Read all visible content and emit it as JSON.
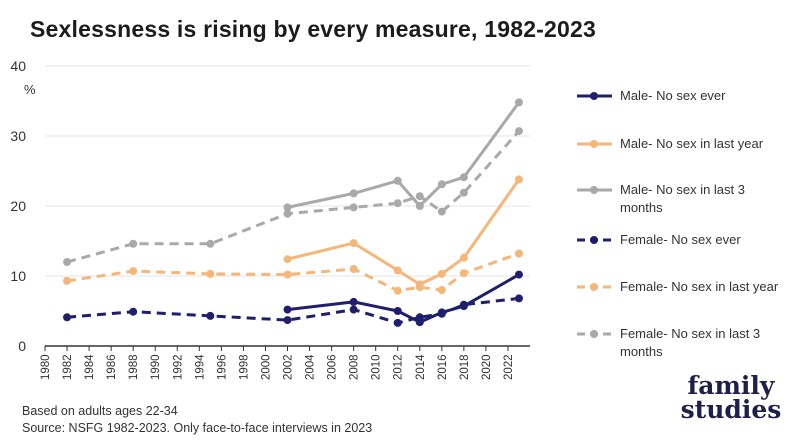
{
  "title": "Sexlessness is rising by every measure, 1982-2023",
  "footnotes": {
    "line1": "Based on adults ages 22-34",
    "line2": "Source: NSFG 1982-2023. Only face-to-face interviews in 2023"
  },
  "logo": {
    "line1": "family",
    "line2": "studies"
  },
  "colors": {
    "navy": "#1f1f6e",
    "orange": "#f5b67a",
    "gray": "#a9a9a9",
    "axis": "#333333",
    "grid": "#e6e6e6"
  },
  "chart_data": {
    "type": "line",
    "title": "Sexlessness is rising by every measure, 1982-2023",
    "ylabel": "%",
    "xlim": [
      1980,
      2024
    ],
    "ylim": [
      0,
      40
    ],
    "yticks": [
      0,
      10,
      20,
      30,
      40
    ],
    "xticks": [
      1980,
      1982,
      1984,
      1986,
      1988,
      1990,
      1992,
      1994,
      1996,
      1998,
      2000,
      2002,
      2004,
      2006,
      2008,
      2010,
      2012,
      2014,
      2016,
      2018,
      2020,
      2022
    ],
    "grid": true,
    "legend_position": "right",
    "series": [
      {
        "name": "Male- No sex ever",
        "legend_line1": "Male-  No sex ever",
        "legend_line2": "",
        "color": "#1f1f6e",
        "dash": false,
        "x": [
          2002,
          2008,
          2012,
          2014,
          2016,
          2018,
          2023
        ],
        "y": [
          5.2,
          6.3,
          5.0,
          3.4,
          4.8,
          5.7,
          10.2
        ]
      },
      {
        "name": "Male- No sex in last year",
        "legend_line1": "Male-  No sex in last year",
        "legend_line2": "",
        "color": "#f5b67a",
        "dash": false,
        "x": [
          2002,
          2008,
          2012,
          2014,
          2016,
          2018,
          2023
        ],
        "y": [
          12.4,
          14.7,
          10.8,
          8.8,
          10.3,
          12.6,
          23.8
        ]
      },
      {
        "name": "Male- No sex in last 3 months",
        "legend_line1": "Male-  No sex in last 3",
        "legend_line2": "months",
        "color": "#a9a9a9",
        "dash": false,
        "x": [
          2002,
          2008,
          2012,
          2014,
          2016,
          2018,
          2023
        ],
        "y": [
          19.8,
          21.8,
          23.6,
          20.0,
          23.1,
          24.1,
          34.8
        ]
      },
      {
        "name": "Female- No sex ever",
        "legend_line1": "Female-  No sex ever",
        "legend_line2": "",
        "color": "#1f1f6e",
        "dash": true,
        "x": [
          1982,
          1988,
          1995,
          2002,
          2008,
          2012,
          2014,
          2016,
          2018,
          2023
        ],
        "y": [
          4.1,
          4.9,
          4.3,
          3.7,
          5.2,
          3.3,
          4.1,
          4.6,
          5.9,
          6.8
        ]
      },
      {
        "name": "Female- No sex in last year",
        "legend_line1": "Female-  No sex in last year",
        "legend_line2": "",
        "color": "#f5b67a",
        "dash": true,
        "x": [
          1982,
          1988,
          1995,
          2002,
          2008,
          2012,
          2014,
          2016,
          2018,
          2023
        ],
        "y": [
          9.3,
          10.7,
          10.3,
          10.2,
          11.0,
          7.9,
          8.4,
          8.0,
          10.4,
          13.2
        ]
      },
      {
        "name": "Female- No sex in last 3 months",
        "legend_line1": "Female-  No sex in last 3",
        "legend_line2": "months",
        "color": "#a9a9a9",
        "dash": true,
        "x": [
          1982,
          1988,
          1995,
          2002,
          2008,
          2012,
          2014,
          2016,
          2018,
          2023
        ],
        "y": [
          12.0,
          14.6,
          14.6,
          18.9,
          19.8,
          20.4,
          21.4,
          19.2,
          21.9,
          30.7
        ]
      }
    ]
  }
}
